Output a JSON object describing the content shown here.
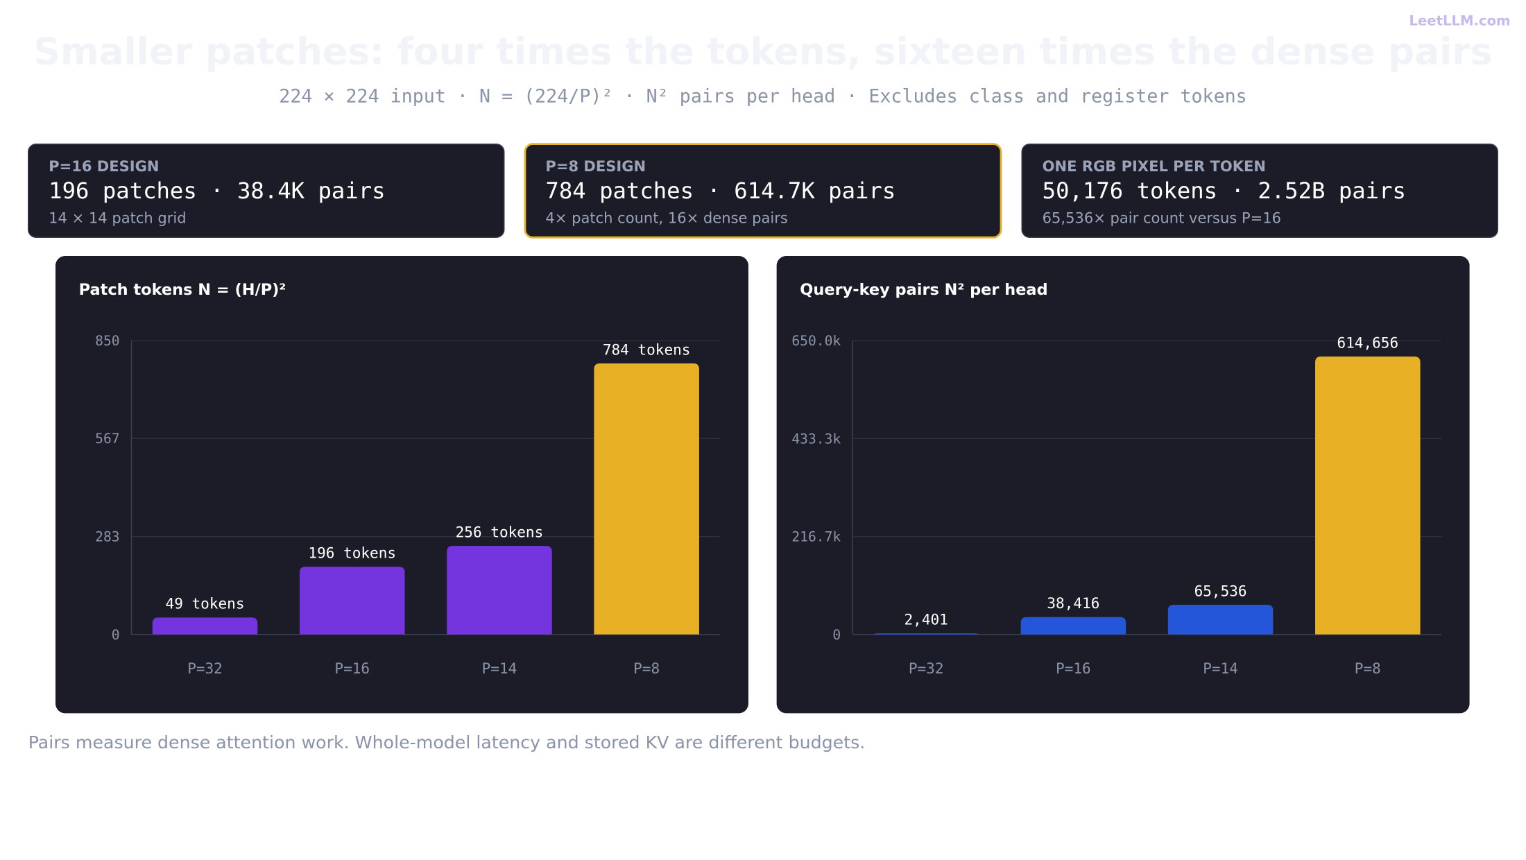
{
  "brand": "LeetLLM.com",
  "header": {
    "title": "Smaller patches: four times the tokens, sixteen times the dense pairs",
    "subtitle": "224 × 224 input · N = (224/P)² · N² pairs per head · Excludes class and register tokens"
  },
  "cards": [
    {
      "label": "P=16 DESIGN",
      "main": "196 patches · 38.4K pairs",
      "sub": "14 × 14 patch grid",
      "highlight": false
    },
    {
      "label": "P=8 DESIGN",
      "main": "784 patches · 614.7K pairs",
      "sub": "4× patch count, 16× dense pairs",
      "highlight": true
    },
    {
      "label": "ONE RGB PIXEL PER TOKEN",
      "main": "50,176 tokens · 2.52B pairs",
      "sub": "65,536× pair count versus P=16",
      "highlight": false
    }
  ],
  "chart_data": [
    {
      "type": "bar",
      "title": "Patch tokens N = (H/P)²",
      "categories": [
        "P=32",
        "P=16",
        "P=14",
        "P=8"
      ],
      "values": [
        49,
        196,
        256,
        784
      ],
      "value_labels": [
        "49 tokens",
        "196 tokens",
        "256 tokens",
        "784 tokens"
      ],
      "colors": [
        "#7535de",
        "#7535de",
        "#7535de",
        "#e8b125"
      ],
      "ylim": [
        0,
        850
      ],
      "yticks": [
        0,
        283,
        567,
        850
      ],
      "grid": true
    },
    {
      "type": "bar",
      "title": "Query-key pairs N² per head",
      "categories": [
        "P=32",
        "P=16",
        "P=14",
        "P=8"
      ],
      "values": [
        2401,
        38416,
        65536,
        614656
      ],
      "value_labels": [
        "2,401",
        "38,416",
        "65,536",
        "614,656"
      ],
      "colors": [
        "#2456d9",
        "#2456d9",
        "#2456d9",
        "#e8b125"
      ],
      "ylim": [
        0,
        650000
      ],
      "yticks": [
        0,
        {
          "value": 216667,
          "label": "216.7k"
        },
        {
          "value": 433333,
          "label": "433.3k"
        },
        {
          "value": 650000,
          "label": "650.0k"
        }
      ],
      "grid": true
    }
  ],
  "footnote": "Pairs measure dense attention work. Whole-model latency and stored KV are different budgets."
}
